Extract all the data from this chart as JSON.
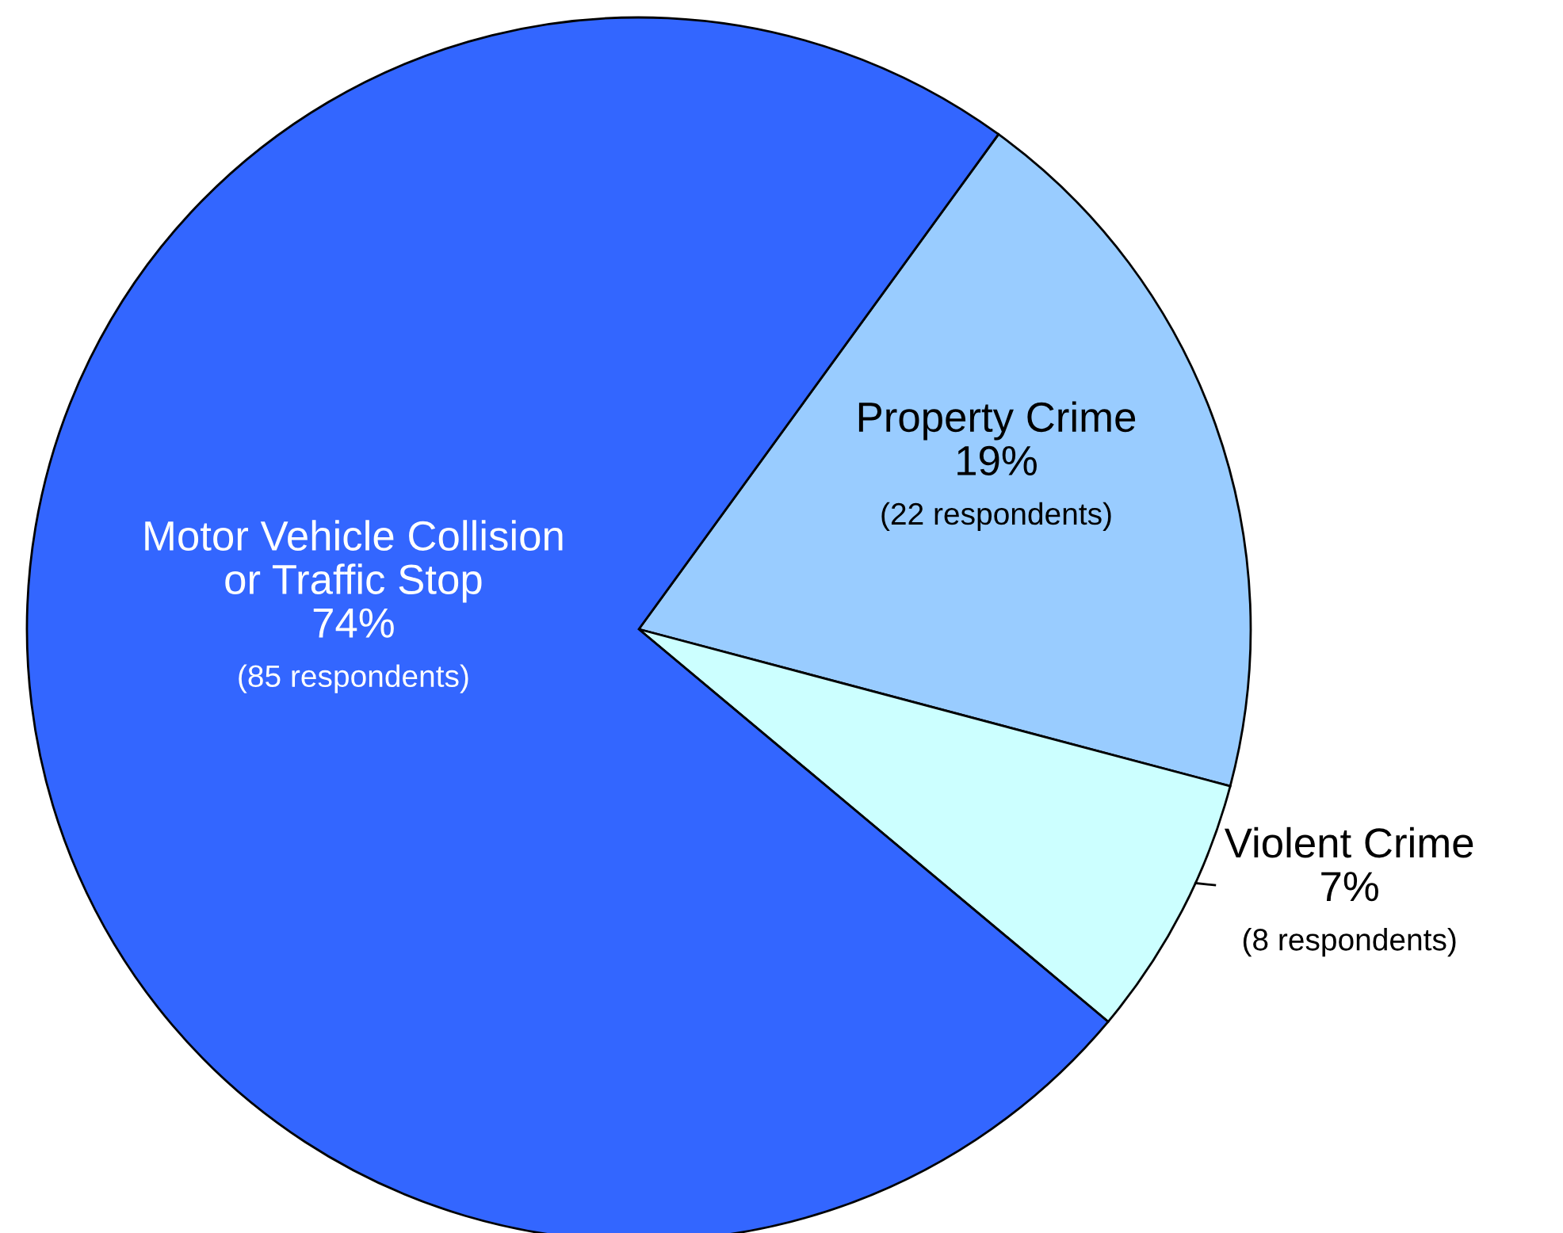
{
  "chart_data": {
    "type": "pie",
    "categories": [
      "Property Crime",
      "Violent Crime",
      "Motor Vehicle Collision\nor Traffic Stop"
    ],
    "values": [
      22,
      8,
      85
    ],
    "colors": [
      "#99ccff",
      "#ccffff",
      "#3366ff"
    ],
    "value_labels": [
      "19%\n(22 respondents)",
      "7%\n(8 respondents)",
      "74%\n(85 respondents)"
    ]
  }
}
